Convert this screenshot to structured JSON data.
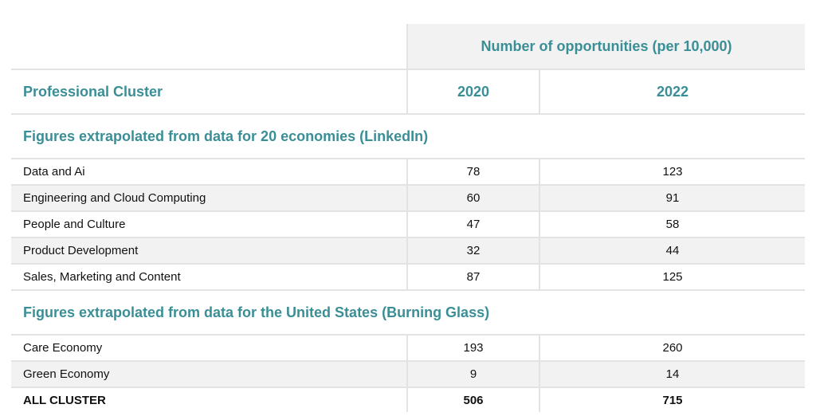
{
  "table": {
    "header_group": "Number of opportunities (per 10,000)",
    "col_cluster": "Professional Cluster",
    "col_2020": "2020",
    "col_2022": "2022",
    "sections": [
      {
        "title": "Figures extrapolated from data for 20 economies (LinkedIn)",
        "rows": [
          {
            "cluster": "Data and Ai",
            "v2020": "78",
            "v2022": "123"
          },
          {
            "cluster": "Engineering and Cloud Computing",
            "v2020": "60",
            "v2022": "91"
          },
          {
            "cluster": "People and Culture",
            "v2020": "47",
            "v2022": "58"
          },
          {
            "cluster": "Product Development",
            "v2020": "32",
            "v2022": "44"
          },
          {
            "cluster": "Sales, Marketing and Content",
            "v2020": "87",
            "v2022": "125"
          }
        ]
      },
      {
        "title": "Figures extrapolated from data for the United States (Burning Glass)",
        "rows": [
          {
            "cluster": "Care Economy",
            "v2020": "193",
            "v2022": "260"
          },
          {
            "cluster": "Green Economy",
            "v2020": "9",
            "v2022": "14"
          }
        ]
      }
    ],
    "total": {
      "cluster": "ALL CLUSTER",
      "v2020": "506",
      "v2022": "715"
    }
  },
  "colors": {
    "accent": "#3a8f96",
    "rule": "#e3e3e3",
    "shade": "#f2f2f2"
  }
}
